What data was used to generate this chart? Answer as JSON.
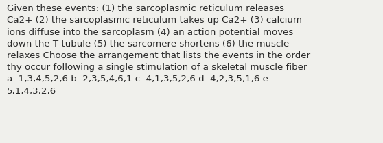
{
  "text": "Given these events: (1) the sarcoplasmic reticulum releases\nCa2+ (2) the sarcoplasmic reticulum takes up Ca2+ (3) calcium\nions diffuse into the sarcoplasm (4) an action potential moves\ndown the T tubule (5) the sarcomere shortens (6) the muscle\nrelaxes Choose the arrangement that lists the events in the order\nthy occur following a single stimulation of a skeletal muscle fiber\na. 1,3,4,5,2,6 b. 2,3,5,4,6,1 c. 4,1,3,5,2,6 d. 4,2,3,5,1,6 e.\n5,1,4,3,2,6",
  "background_color": "#f0f0ec",
  "text_color": "#2a2a2a",
  "font_size": 9.6,
  "fig_width": 5.58,
  "fig_height": 2.09,
  "dpi": 100
}
